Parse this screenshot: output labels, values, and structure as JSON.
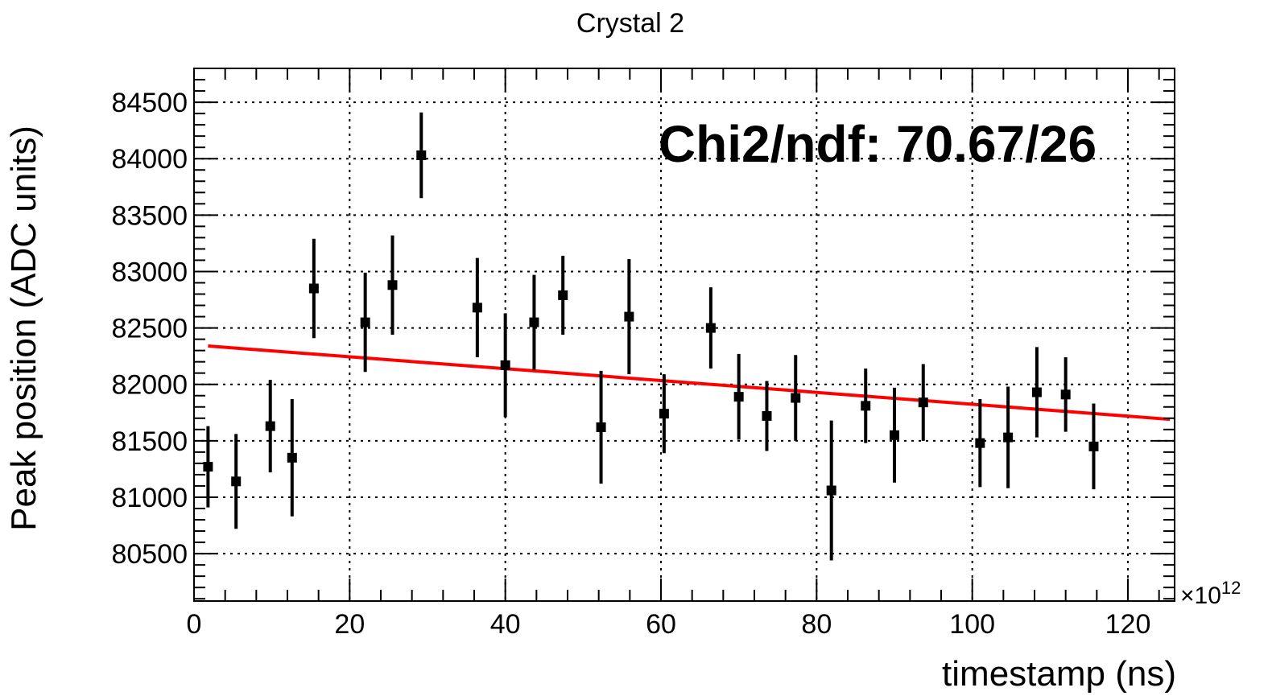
{
  "chart_data": {
    "type": "scatter",
    "title": "Crystal 2",
    "xlabel": "timestamp (ns)",
    "ylabel": "Peak position (ADC units)",
    "x_multiplier_label": "×10",
    "x_multiplier_exponent": "12",
    "annotation": "Chi2/ndf: 70.67/26",
    "xlim": [
      0,
      126
    ],
    "ylim": [
      80080,
      84800
    ],
    "x_ticks": [
      0,
      20,
      40,
      60,
      80,
      100,
      120
    ],
    "y_ticks": [
      80500,
      81000,
      81500,
      82000,
      82500,
      83000,
      83500,
      84000,
      84500
    ],
    "grid": true,
    "series": [
      {
        "x": [
          1.8,
          5.4,
          9.8,
          12.6,
          15.4,
          22.0,
          25.5,
          29.2,
          36.4,
          40.0,
          43.7,
          47.4,
          52.3,
          55.9,
          60.4,
          66.4,
          70.0,
          73.6,
          77.3,
          81.9,
          86.3,
          90.0,
          93.7,
          101.0,
          104.6,
          108.3,
          112.0,
          115.6
        ],
        "y": [
          81270,
          81140,
          81630,
          81350,
          82850,
          82550,
          82880,
          84030,
          82680,
          82170,
          82550,
          82790,
          81620,
          82600,
          81740,
          82500,
          81890,
          81720,
          81880,
          81060,
          81810,
          81550,
          81840,
          81480,
          81530,
          81930,
          81910,
          81450
        ],
        "err": [
          360,
          420,
          410,
          520,
          440,
          440,
          440,
          380,
          440,
          460,
          420,
          350,
          500,
          510,
          350,
          360,
          380,
          310,
          380,
          620,
          330,
          420,
          340,
          390,
          450,
          400,
          330,
          380
        ]
      }
    ],
    "fit_line": {
      "x": [
        1.8,
        125.4
      ],
      "y": [
        82340,
        81690
      ]
    },
    "colors": {
      "points": "#000000",
      "fit": "#ff0000",
      "grid": "#000000",
      "frame": "#000000"
    }
  }
}
